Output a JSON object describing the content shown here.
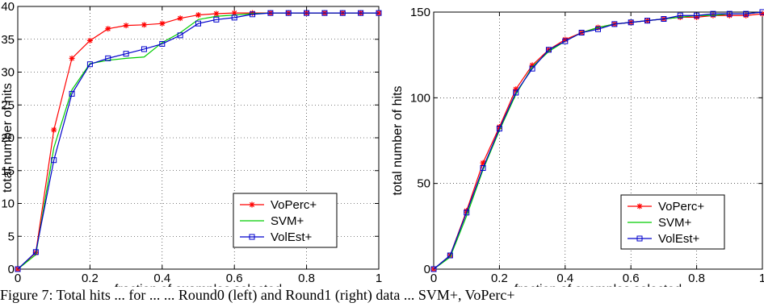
{
  "caption": "Figure 7: Total hits ... for ... ... Round0 (left) and Round1 (right) data ... SVM+, VoPerc+",
  "chart_data": [
    {
      "type": "line",
      "xlabel": "fraction of examples selected",
      "ylabel": "total number of hits",
      "xlim": [
        0,
        1
      ],
      "ylim": [
        0,
        40
      ],
      "xticks": [
        "0",
        "0.2",
        "0.4",
        "0.6",
        "0.8",
        "1"
      ],
      "yticks": [
        "0",
        "5",
        "10",
        "15",
        "20",
        "25",
        "30",
        "35",
        "40"
      ],
      "grid": true,
      "legend_position": "bottom-right",
      "x": [
        0,
        0.05,
        0.1,
        0.15,
        0.2,
        0.25,
        0.3,
        0.35,
        0.4,
        0.45,
        0.5,
        0.55,
        0.6,
        0.65,
        0.7,
        0.75,
        0.8,
        0.85,
        0.9,
        0.95,
        1.0
      ],
      "series": [
        {
          "name": "VoPerc+",
          "color": "#ff0000",
          "marker": "star",
          "values": [
            0,
            2.5,
            21.2,
            32.1,
            34.8,
            36.6,
            37.1,
            37.2,
            37.4,
            38.2,
            38.7,
            38.9,
            39,
            39,
            39,
            39,
            39,
            39,
            39,
            39,
            39
          ]
        },
        {
          "name": "SVM+",
          "color": "#00cc00",
          "marker": "none",
          "values": [
            0,
            2.2,
            18.5,
            27.3,
            31.3,
            31.8,
            32.1,
            32.3,
            34.5,
            36.0,
            38.0,
            38.5,
            38.7,
            38.9,
            39,
            39,
            39,
            39,
            39,
            39,
            39
          ]
        },
        {
          "name": "VolEst+",
          "color": "#0000cc",
          "marker": "square",
          "values": [
            0,
            2.6,
            16.6,
            26.7,
            31.2,
            32.1,
            32.8,
            33.5,
            34.3,
            35.6,
            37.4,
            38.0,
            38.3,
            38.8,
            39,
            39,
            39,
            39,
            39,
            39,
            39
          ]
        }
      ]
    },
    {
      "type": "line",
      "xlabel": "fraction of examples selected",
      "ylabel": "total number of hits",
      "xlim": [
        0,
        1
      ],
      "ylim": [
        0,
        150
      ],
      "xticks": [
        "0",
        "0.2",
        "0.4",
        "0.6",
        "0.8",
        "1"
      ],
      "yticks": [
        "0",
        "50",
        "100",
        "150"
      ],
      "grid": true,
      "legend_position": "bottom-right",
      "x": [
        0,
        0.05,
        0.1,
        0.15,
        0.2,
        0.25,
        0.3,
        0.35,
        0.4,
        0.45,
        0.5,
        0.55,
        0.6,
        0.65,
        0.7,
        0.75,
        0.8,
        0.85,
        0.9,
        0.95,
        1.0
      ],
      "series": [
        {
          "name": "VoPerc+",
          "color": "#ff0000",
          "marker": "star",
          "values": [
            0,
            8,
            34,
            62,
            83,
            105,
            119,
            128,
            134,
            138,
            141,
            143,
            144,
            145,
            146,
            147,
            147,
            148,
            148,
            148,
            149
          ]
        },
        {
          "name": "SVM+",
          "color": "#00cc00",
          "marker": "none",
          "values": [
            0,
            7,
            31,
            58,
            81,
            102,
            118,
            127,
            133,
            138,
            141,
            143,
            144,
            145,
            146,
            147,
            148,
            148,
            149,
            149,
            150
          ]
        },
        {
          "name": "VolEst+",
          "color": "#0000cc",
          "marker": "square",
          "values": [
            0,
            8,
            33,
            59,
            82,
            103,
            117,
            128,
            133,
            138,
            140,
            143,
            144,
            145,
            146,
            148,
            148,
            149,
            149,
            149,
            150
          ]
        }
      ]
    }
  ]
}
